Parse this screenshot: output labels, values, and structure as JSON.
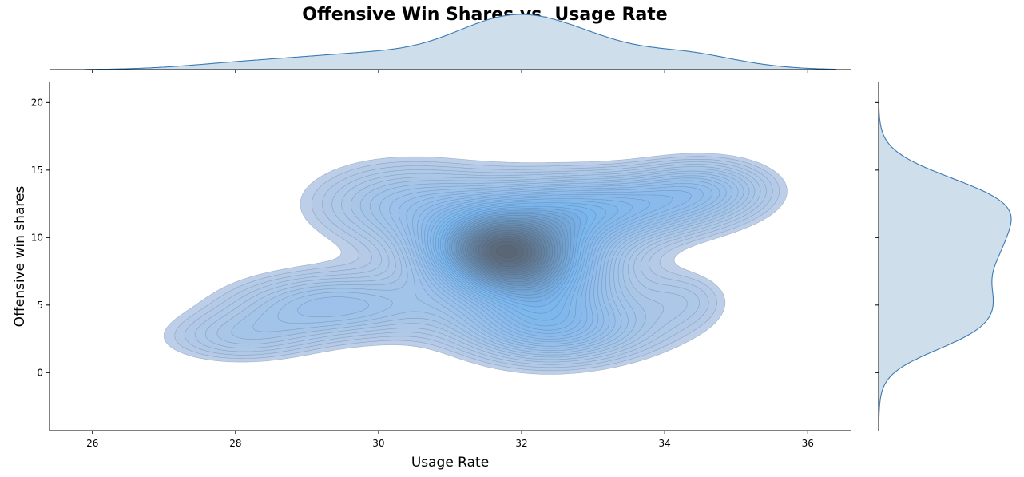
{
  "chart_data": {
    "type": "kde-joint",
    "title": "Offensive Win Shares vs. Usage Rate",
    "xlabel": "Usage Rate",
    "ylabel": "Offensive win shares",
    "xlim": [
      25.4,
      36.6
    ],
    "ylim": [
      -4.3,
      21.5
    ],
    "xticks": [
      26,
      28,
      30,
      32,
      34,
      36
    ],
    "yticks": [
      0,
      5,
      10,
      15,
      20
    ],
    "grid": false,
    "legend": "none",
    "colors": {
      "fill_light": "#b7cbe6",
      "fill_mid": "#7ab4ec",
      "fill_dark": "#5a6675",
      "contour_line": "#3c5a78",
      "marginal_fill": "#cfdeeb",
      "marginal_line": "#3a7ab4"
    },
    "density_components": [
      {
        "x": 31.6,
        "y": 9.0,
        "sx": 0.7,
        "sy": 2.0,
        "w": 1.0
      },
      {
        "x": 32.3,
        "y": 7.0,
        "sx": 0.8,
        "sy": 3.3,
        "w": 0.7
      },
      {
        "x": 33.2,
        "y": 12.2,
        "sx": 1.1,
        "sy": 1.8,
        "w": 0.6
      },
      {
        "x": 30.4,
        "y": 12.5,
        "sx": 1.0,
        "sy": 2.3,
        "w": 0.4
      },
      {
        "x": 29.4,
        "y": 5.0,
        "sx": 1.1,
        "sy": 1.8,
        "w": 0.45
      },
      {
        "x": 28.0,
        "y": 2.5,
        "sx": 0.8,
        "sy": 1.4,
        "w": 0.25
      },
      {
        "x": 32.6,
        "y": 3.0,
        "sx": 1.1,
        "sy": 1.7,
        "w": 0.35
      },
      {
        "x": 34.3,
        "y": 5.5,
        "sx": 0.5,
        "sy": 1.6,
        "w": 0.2
      },
      {
        "x": 34.6,
        "y": 13.8,
        "sx": 0.7,
        "sy": 1.6,
        "w": 0.35
      }
    ],
    "contour_levels": 42
  }
}
